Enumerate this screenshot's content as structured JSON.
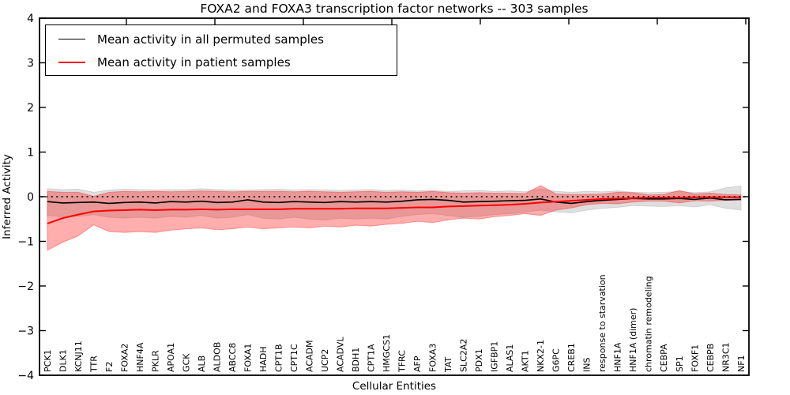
{
  "figure": {
    "title": "FOXA2 and FOXA3 transcription factor networks -- 303 samples",
    "xlabel": "Cellular Entities",
    "ylabel": "Inferred Activity"
  },
  "legend": {
    "items": [
      {
        "label": "Mean activity in all permuted samples",
        "color": "#000000"
      },
      {
        "label": "Mean activity in patient samples",
        "color": "#ff0000"
      }
    ],
    "position": "upper left"
  },
  "chart_data": {
    "type": "line",
    "title": "FOXA2 and FOXA3 transcription factor networks -- 303 samples",
    "xlabel": "Cellular Entities",
    "ylabel": "Inferred Activity",
    "ylim": [
      -4,
      4
    ],
    "ytick_values": [
      4,
      3,
      2,
      1,
      0,
      -1,
      -2,
      -3,
      -4
    ],
    "ytick_labels": [
      "4",
      "3",
      "2",
      "1",
      "0",
      "−1",
      "−2",
      "−3",
      "−4"
    ],
    "grid": false,
    "zero_reference_line": {
      "y": 0,
      "style": "dotted",
      "color": "#000000"
    },
    "x_tick_label_rotation": 90,
    "categories": [
      "PCK1",
      "DLK1",
      "KCNJ11",
      "TTR",
      "F2",
      "FOXA2",
      "HNF4A",
      "PKLR",
      "APOA1",
      "GCK",
      "ALB",
      "ALDOB",
      "ABCC8",
      "FOXA1",
      "HADH",
      "CPT1B",
      "CPT1C",
      "ACADM",
      "UCP2",
      "ACADVL",
      "BDH1",
      "CPT1A",
      "HMGCS1",
      "TFRC",
      "AFP",
      "FOXA3",
      "TAT",
      "SLC2A2",
      "PDX1",
      "IGFBP1",
      "ALAS1",
      "AKT1",
      "NKX2-1",
      "G6PC",
      "CREB1",
      "INS",
      "response to starvation",
      "HNF1A",
      "HNF1A (dimer)",
      "chromatin remodeling",
      "CEBPA",
      "SP1",
      "FOXF1",
      "CEBPB",
      "NR3C1",
      "NF1"
    ],
    "series": [
      {
        "name": "Mean activity in all permuted samples",
        "color": "#000000",
        "line_width": 1.6,
        "values": [
          -0.11,
          -0.14,
          -0.13,
          -0.12,
          -0.15,
          -0.13,
          -0.12,
          -0.14,
          -0.11,
          -0.12,
          -0.1,
          -0.13,
          -0.12,
          -0.07,
          -0.12,
          -0.13,
          -0.11,
          -0.12,
          -0.13,
          -0.11,
          -0.12,
          -0.11,
          -0.12,
          -0.1,
          -0.07,
          -0.06,
          -0.08,
          -0.12,
          -0.11,
          -0.1,
          -0.09,
          -0.08,
          -0.05,
          -0.12,
          -0.15,
          -0.11,
          -0.08,
          -0.06,
          -0.04,
          -0.05,
          -0.05,
          -0.04,
          -0.06,
          -0.03,
          -0.07,
          -0.06
        ],
        "band": {
          "fill": "rgba(128,128,128,0.25)",
          "upper": [
            0.18,
            0.16,
            0.17,
            0.1,
            0.15,
            0.17,
            0.16,
            0.15,
            0.16,
            0.16,
            0.18,
            0.16,
            0.15,
            0.15,
            0.16,
            0.17,
            0.15,
            0.16,
            0.15,
            0.14,
            0.15,
            0.16,
            0.14,
            0.15,
            0.13,
            0.14,
            0.12,
            0.13,
            0.14,
            0.12,
            0.13,
            0.11,
            0.18,
            0.12,
            0.1,
            0.12,
            0.11,
            0.13,
            0.1,
            0.09,
            0.1,
            0.12,
            0.09,
            0.11,
            0.2,
            0.24
          ],
          "lower": [
            -0.42,
            -0.45,
            -0.44,
            -0.4,
            -0.46,
            -0.48,
            -0.46,
            -0.48,
            -0.44,
            -0.46,
            -0.42,
            -0.48,
            -0.46,
            -0.4,
            -0.48,
            -0.5,
            -0.46,
            -0.5,
            -0.52,
            -0.48,
            -0.5,
            -0.48,
            -0.5,
            -0.44,
            -0.4,
            -0.38,
            -0.42,
            -0.46,
            -0.44,
            -0.4,
            -0.38,
            -0.34,
            -0.3,
            -0.34,
            -0.36,
            -0.3,
            -0.26,
            -0.24,
            -0.2,
            -0.21,
            -0.22,
            -0.2,
            -0.23,
            -0.18,
            -0.26,
            -0.3
          ]
        }
      },
      {
        "name": "Mean activity in patient samples",
        "color": "#ff0000",
        "line_width": 2,
        "values": [
          -0.6,
          -0.48,
          -0.4,
          -0.33,
          -0.31,
          -0.3,
          -0.29,
          -0.3,
          -0.29,
          -0.29,
          -0.28,
          -0.29,
          -0.28,
          -0.28,
          -0.28,
          -0.28,
          -0.27,
          -0.27,
          -0.27,
          -0.27,
          -0.26,
          -0.26,
          -0.26,
          -0.25,
          -0.24,
          -0.24,
          -0.22,
          -0.21,
          -0.2,
          -0.19,
          -0.18,
          -0.16,
          -0.13,
          -0.11,
          -0.09,
          -0.07,
          -0.05,
          -0.04,
          -0.03,
          -0.02,
          -0.02,
          -0.02,
          -0.01,
          -0.01,
          -0.01,
          -0.01
        ],
        "band": {
          "fill": "rgba(255,0,0,0.32)",
          "upper": [
            0.12,
            0.1,
            0.1,
            0.01,
            0.1,
            0.12,
            0.11,
            0.12,
            0.11,
            0.12,
            0.13,
            0.12,
            0.11,
            0.12,
            0.12,
            0.12,
            0.11,
            0.12,
            0.11,
            0.1,
            0.11,
            0.12,
            0.1,
            0.11,
            0.1,
            0.12,
            0.09,
            0.08,
            0.09,
            0.08,
            0.08,
            0.07,
            0.25,
            0.06,
            0.05,
            0.05,
            0.06,
            0.1,
            0.09,
            0.04,
            0.05,
            0.14,
            0.06,
            0.08,
            0.05,
            0.04
          ],
          "lower": [
            -1.2,
            -1.02,
            -0.88,
            -0.63,
            -0.78,
            -0.8,
            -0.78,
            -0.8,
            -0.75,
            -0.72,
            -0.7,
            -0.74,
            -0.72,
            -0.68,
            -0.72,
            -0.7,
            -0.68,
            -0.7,
            -0.66,
            -0.68,
            -0.64,
            -0.66,
            -0.62,
            -0.6,
            -0.55,
            -0.58,
            -0.52,
            -0.48,
            -0.5,
            -0.45,
            -0.42,
            -0.38,
            -0.42,
            -0.3,
            -0.25,
            -0.18,
            -0.15,
            -0.16,
            -0.12,
            -0.1,
            -0.1,
            -0.14,
            -0.09,
            -0.1,
            -0.08,
            -0.07
          ]
        }
      }
    ]
  }
}
